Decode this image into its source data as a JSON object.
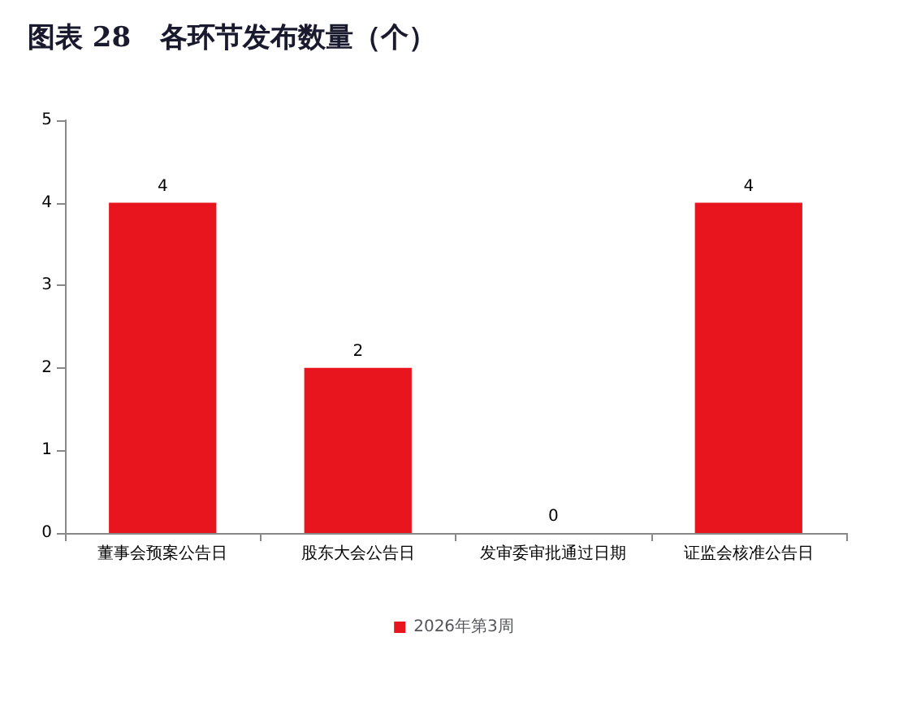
{
  "chart_data": {
    "type": "bar",
    "title": "图表 28   各环节发布数量（个）",
    "categories": [
      "董事会预案公告日",
      "股东大会公告日",
      "发审委审批通过日期",
      "证监会核准公告日"
    ],
    "series": [
      {
        "name": "2026年第3周",
        "color": "#e8141e",
        "values": [
          4,
          2,
          0,
          4
        ]
      }
    ],
    "ylim": [
      0,
      5
    ],
    "yticks": [
      0,
      1,
      2,
      3,
      4,
      5
    ],
    "grid": false,
    "legend": "bottom",
    "data_labels": true
  }
}
